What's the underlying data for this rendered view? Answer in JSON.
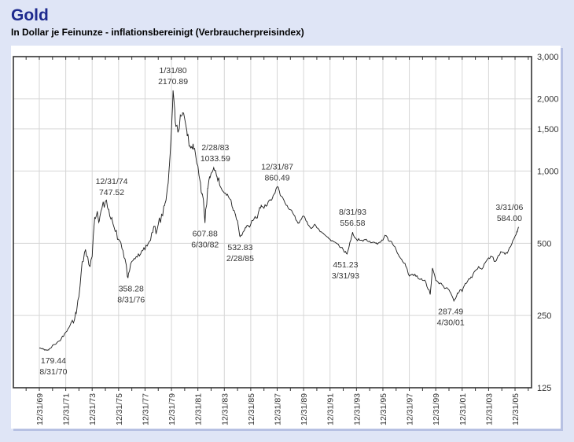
{
  "header": {
    "title": "Gold",
    "subtitle": "In Dollar je Feinunze - inflationsbereinigt (Verbraucherpreisindex)"
  },
  "chart_data": {
    "type": "line",
    "title": "Gold",
    "subtitle": "In Dollar je Feinunze - inflationsbereinigt (Verbraucherpreisindex)",
    "y_scale": "log",
    "ylim": [
      125,
      3000
    ],
    "grid": true,
    "y_ticks": [
      {
        "value": 3000,
        "label": "3,000",
        "gridline": false
      },
      {
        "value": 2000,
        "label": "2,000",
        "gridline": true
      },
      {
        "value": 1500,
        "label": "1,500",
        "gridline": true
      },
      {
        "value": 1000,
        "label": "1,000",
        "gridline": true
      },
      {
        "value": 500,
        "label": "500",
        "gridline": true
      },
      {
        "value": 250,
        "label": "250",
        "gridline": true
      },
      {
        "value": 125,
        "label": "125",
        "gridline": false
      }
    ],
    "x_tick_labels": [
      "12/31/69",
      "12/31/71",
      "12/31/73",
      "12/31/75",
      "12/31/77",
      "12/31/79",
      "12/31/81",
      "12/31/83",
      "12/31/85",
      "12/31/87",
      "12/31/89",
      "12/31/91",
      "12/31/93",
      "12/31/95",
      "12/31/97",
      "12/31/99",
      "12/31/01",
      "12/31/03",
      "12/31/05"
    ],
    "x_tick_start_year": 1969.96,
    "x_tick_step_years": 2,
    "series": [
      {
        "name": "Gold inflationsbereinigt",
        "anchors": [
          [
            1969.96,
            183
          ],
          [
            1970.25,
            181
          ],
          [
            1970.67,
            179.44
          ],
          [
            1971.0,
            188
          ],
          [
            1971.5,
            196
          ],
          [
            1971.96,
            213
          ],
          [
            1972.4,
            235
          ],
          [
            1972.75,
            255
          ],
          [
            1972.96,
            300
          ],
          [
            1973.2,
            420
          ],
          [
            1973.45,
            470
          ],
          [
            1973.6,
            440
          ],
          [
            1973.8,
            400
          ],
          [
            1973.96,
            440
          ],
          [
            1974.15,
            640
          ],
          [
            1974.35,
            680
          ],
          [
            1974.5,
            620
          ],
          [
            1974.7,
            700
          ],
          [
            1974.96,
            747.52
          ],
          [
            1975.2,
            690
          ],
          [
            1975.45,
            640
          ],
          [
            1975.7,
            560
          ],
          [
            1975.96,
            520
          ],
          [
            1976.2,
            480
          ],
          [
            1976.45,
            430
          ],
          [
            1976.67,
            358.28
          ],
          [
            1976.96,
            420
          ],
          [
            1977.3,
            440
          ],
          [
            1977.6,
            450
          ],
          [
            1977.96,
            470
          ],
          [
            1978.3,
            510
          ],
          [
            1978.6,
            580
          ],
          [
            1978.8,
            550
          ],
          [
            1978.96,
            600
          ],
          [
            1979.2,
            650
          ],
          [
            1979.45,
            720
          ],
          [
            1979.65,
            850
          ],
          [
            1979.8,
            1050
          ],
          [
            1979.96,
            1500
          ],
          [
            1980.08,
            2170.89
          ],
          [
            1980.25,
            1600
          ],
          [
            1980.45,
            1450
          ],
          [
            1980.65,
            1700
          ],
          [
            1980.8,
            1750
          ],
          [
            1980.96,
            1650
          ],
          [
            1981.15,
            1400
          ],
          [
            1981.4,
            1250
          ],
          [
            1981.6,
            1300
          ],
          [
            1981.8,
            1150
          ],
          [
            1981.96,
            1050
          ],
          [
            1982.15,
            900
          ],
          [
            1982.3,
            800
          ],
          [
            1982.5,
            607.88
          ],
          [
            1982.7,
            850
          ],
          [
            1982.85,
            950
          ],
          [
            1982.96,
            980
          ],
          [
            1983.16,
            1033.59
          ],
          [
            1983.4,
            950
          ],
          [
            1983.6,
            880
          ],
          [
            1983.8,
            830
          ],
          [
            1983.96,
            810
          ],
          [
            1984.2,
            800
          ],
          [
            1984.45,
            760
          ],
          [
            1984.6,
            700
          ],
          [
            1984.8,
            660
          ],
          [
            1984.96,
            620
          ],
          [
            1985.16,
            532.83
          ],
          [
            1985.4,
            560
          ],
          [
            1985.6,
            580
          ],
          [
            1985.8,
            590
          ],
          [
            1985.96,
            600
          ],
          [
            1986.2,
            630
          ],
          [
            1986.45,
            640
          ],
          [
            1986.6,
            690
          ],
          [
            1986.75,
            720
          ],
          [
            1986.96,
            700
          ],
          [
            1987.2,
            720
          ],
          [
            1987.45,
            760
          ],
          [
            1987.65,
            790
          ],
          [
            1987.8,
            810
          ],
          [
            1987.96,
            860.49
          ],
          [
            1988.2,
            790
          ],
          [
            1988.45,
            760
          ],
          [
            1988.65,
            720
          ],
          [
            1988.8,
            700
          ],
          [
            1988.96,
            690
          ],
          [
            1989.2,
            660
          ],
          [
            1989.45,
            620
          ],
          [
            1989.6,
            610
          ],
          [
            1989.8,
            630
          ],
          [
            1989.96,
            650
          ],
          [
            1990.15,
            620
          ],
          [
            1990.4,
            590
          ],
          [
            1990.6,
            580
          ],
          [
            1990.8,
            600
          ],
          [
            1990.96,
            580
          ],
          [
            1991.2,
            560
          ],
          [
            1991.45,
            550
          ],
          [
            1991.6,
            540
          ],
          [
            1991.8,
            530
          ],
          [
            1991.96,
            520
          ],
          [
            1992.2,
            510
          ],
          [
            1992.45,
            500
          ],
          [
            1992.6,
            495
          ],
          [
            1992.8,
            480
          ],
          [
            1992.96,
            470
          ],
          [
            1993.1,
            460
          ],
          [
            1993.25,
            451.23
          ],
          [
            1993.45,
            500
          ],
          [
            1993.67,
            556.58
          ],
          [
            1993.8,
            530
          ],
          [
            1993.96,
            520
          ],
          [
            1994.2,
            515
          ],
          [
            1994.45,
            510
          ],
          [
            1994.7,
            520
          ],
          [
            1994.96,
            510
          ],
          [
            1995.2,
            505
          ],
          [
            1995.45,
            500
          ],
          [
            1995.7,
            505
          ],
          [
            1995.96,
            515
          ],
          [
            1996.12,
            540
          ],
          [
            1996.45,
            510
          ],
          [
            1996.7,
            495
          ],
          [
            1996.96,
            470
          ],
          [
            1997.2,
            440
          ],
          [
            1997.45,
            420
          ],
          [
            1997.7,
            400
          ],
          [
            1997.96,
            365
          ],
          [
            1998.2,
            370
          ],
          [
            1998.45,
            365
          ],
          [
            1998.7,
            355
          ],
          [
            1998.96,
            350
          ],
          [
            1999.2,
            345
          ],
          [
            1999.54,
            306
          ],
          [
            1999.71,
            394
          ],
          [
            1999.96,
            350
          ],
          [
            2000.2,
            340
          ],
          [
            2000.45,
            335
          ],
          [
            2000.7,
            325
          ],
          [
            2000.96,
            320
          ],
          [
            2001.1,
            310
          ],
          [
            2001.33,
            287.49
          ],
          [
            2001.6,
            310
          ],
          [
            2001.8,
            320
          ],
          [
            2001.96,
            315
          ],
          [
            2002.2,
            340
          ],
          [
            2002.45,
            355
          ],
          [
            2002.7,
            360
          ],
          [
            2002.96,
            385
          ],
          [
            2003.2,
            400
          ],
          [
            2003.45,
            390
          ],
          [
            2003.7,
            415
          ],
          [
            2003.96,
            435
          ],
          [
            2004.2,
            440
          ],
          [
            2004.45,
            420
          ],
          [
            2004.7,
            445
          ],
          [
            2004.96,
            460
          ],
          [
            2005.2,
            450
          ],
          [
            2005.45,
            465
          ],
          [
            2005.7,
            495
          ],
          [
            2005.96,
            535
          ],
          [
            2006.1,
            560
          ],
          [
            2006.25,
            584
          ]
        ]
      }
    ],
    "annotations": [
      {
        "date": "8/31/70",
        "value_label": "179.44",
        "year": 1970.67,
        "value": 179.44,
        "placement": "below",
        "dx": 6
      },
      {
        "date": "12/31/74",
        "value_label": "747.52",
        "year": 1974.96,
        "value": 747.52,
        "placement": "above",
        "dx": 8
      },
      {
        "date": "8/31/76",
        "value_label": "358.28",
        "year": 1976.67,
        "value": 358.28,
        "placement": "below",
        "dx": 4
      },
      {
        "date": "1/31/80",
        "value_label": "2170.89",
        "year": 1980.08,
        "value": 2170.89,
        "placement": "above",
        "dx": 0
      },
      {
        "date": "6/30/82",
        "value_label": "607.88",
        "year": 1982.5,
        "value": 607.88,
        "placement": "below",
        "dx": 0
      },
      {
        "date": "2/28/83",
        "value_label": "1033.59",
        "year": 1983.16,
        "value": 1033.59,
        "placement": "above",
        "dx": 2
      },
      {
        "date": "2/28/85",
        "value_label": "532.83",
        "year": 1985.16,
        "value": 532.83,
        "placement": "below",
        "dx": 0
      },
      {
        "date": "12/31/87",
        "value_label": "860.49",
        "year": 1987.96,
        "value": 860.49,
        "placement": "above",
        "dx": 0
      },
      {
        "date": "3/31/93",
        "value_label": "451.23",
        "year": 1993.25,
        "value": 451.23,
        "placement": "below",
        "dx": -2
      },
      {
        "date": "8/31/93",
        "value_label": "556.58",
        "year": 1993.67,
        "value": 556.58,
        "placement": "above",
        "dx": 0
      },
      {
        "date": "4/30/01",
        "value_label": "287.49",
        "year": 2001.33,
        "value": 287.49,
        "placement": "below",
        "dx": -4
      },
      {
        "date": "3/31/06",
        "value_label": "584.00",
        "year": 2006.25,
        "value": 584,
        "placement": "above",
        "dx": -12
      }
    ],
    "colors": {
      "line": "#1a1a1a",
      "grid": "#d6d6d6",
      "frame": "#333333",
      "labels": "#333333",
      "plot_background": "#ffffff",
      "page_background": "#dfe5f6",
      "title": "#1e2a8e"
    },
    "legend": "none"
  }
}
